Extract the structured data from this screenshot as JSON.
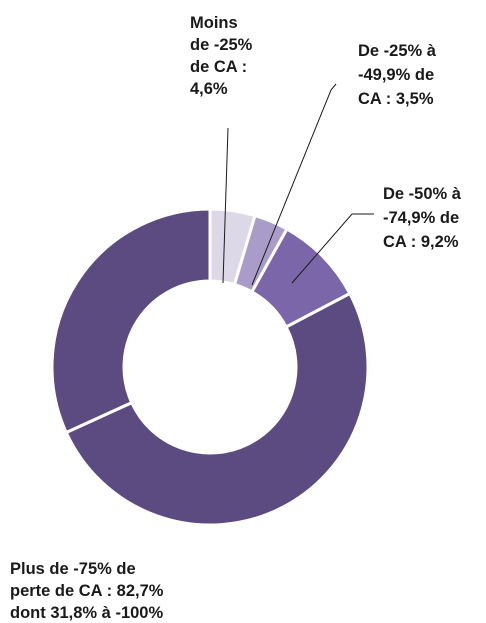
{
  "chart_data": {
    "type": "donut",
    "categories": [
      [
        "Moins",
        "de -25%",
        "de CA :",
        "4,6%"
      ],
      [
        "De -25% à",
        "-49,9% de",
        "CA : 3,5%"
      ],
      [
        "De -50% à",
        "-74,9% de",
        "CA : 9,2%"
      ],
      [
        "Plus de -75% de",
        "perte de CA : 82,7%",
        "dont 31,8% à -100%"
      ],
      null
    ],
    "values": [
      4.6,
      3.5,
      9.2,
      50.9,
      31.8
    ],
    "colors": [
      "#dcd8e8",
      "#a99cc8",
      "#7b66a9",
      "#5c4b80",
      "#5c4b80"
    ]
  }
}
